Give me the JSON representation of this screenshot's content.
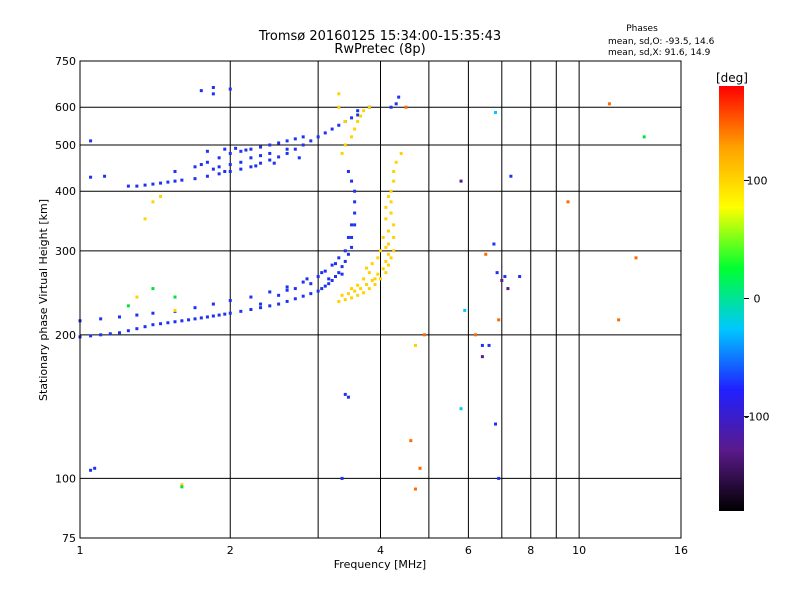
{
  "chart_data": {
    "type": "scatter",
    "title": "Tromsø 20160125 15:34:00-15:35:43",
    "subtitle": "RwPretec (8p)",
    "xlabel": "Frequency [MHz]",
    "ylabel": "Stationary phase Virtual Height [km]",
    "x_scale": "log",
    "y_scale": "log",
    "xlim": [
      1,
      16
    ],
    "ylim": [
      75,
      750
    ],
    "x_ticks": [
      1,
      2,
      4,
      6,
      8,
      10,
      16
    ],
    "y_ticks": [
      75,
      100,
      200,
      300,
      400,
      500,
      600,
      750
    ],
    "x_grid": [
      2,
      3,
      4,
      5,
      6,
      7,
      8,
      9,
      10
    ],
    "y_grid": [
      100,
      200,
      300,
      400,
      500,
      600
    ],
    "stats": {
      "title": "Phases",
      "line_o": "mean, sd,O: -93.5, 14.6",
      "line_x": "mean, sd,X:  91.6, 14.9"
    },
    "colorbar": {
      "label": "[deg]",
      "range": [
        -180,
        180
      ],
      "ticks": [
        100,
        0,
        -100
      ],
      "colors": [
        "#000000",
        "#5a1a8a",
        "#2020ff",
        "#00c8ff",
        "#00ff30",
        "#ffff00",
        "#ffa000",
        "#ff0000"
      ]
    },
    "series": [
      {
        "color": "#1e32f0",
        "points": [
          [
            1.0,
            198
          ],
          [
            1.05,
            199
          ],
          [
            1.1,
            200
          ],
          [
            1.15,
            201
          ],
          [
            1.2,
            202
          ],
          [
            1.25,
            204
          ],
          [
            1.3,
            206
          ],
          [
            1.35,
            208
          ],
          [
            1.4,
            210
          ],
          [
            1.45,
            211
          ],
          [
            1.5,
            212
          ],
          [
            1.55,
            213
          ],
          [
            1.6,
            214
          ],
          [
            1.65,
            215
          ],
          [
            1.7,
            216
          ],
          [
            1.75,
            217
          ],
          [
            1.8,
            218
          ],
          [
            1.85,
            219
          ],
          [
            1.9,
            220
          ],
          [
            1.95,
            221
          ],
          [
            2.0,
            222
          ],
          [
            2.1,
            224
          ],
          [
            2.2,
            226
          ],
          [
            2.3,
            228
          ],
          [
            2.4,
            230
          ],
          [
            2.5,
            232
          ],
          [
            2.6,
            235
          ],
          [
            2.7,
            238
          ],
          [
            2.8,
            241
          ],
          [
            2.9,
            244
          ],
          [
            3.0,
            247
          ],
          [
            3.05,
            250
          ],
          [
            3.1,
            253
          ],
          [
            3.15,
            256
          ],
          [
            3.2,
            260
          ],
          [
            3.25,
            265
          ],
          [
            3.3,
            270
          ],
          [
            3.35,
            278
          ],
          [
            3.4,
            285
          ],
          [
            3.45,
            295
          ],
          [
            3.5,
            305
          ],
          [
            3.5,
            320
          ],
          [
            3.55,
            340
          ],
          [
            3.55,
            360
          ],
          [
            3.55,
            380
          ],
          [
            3.55,
            400
          ],
          [
            3.5,
            420
          ],
          [
            3.45,
            440
          ],
          [
            1.0,
            214
          ],
          [
            1.1,
            216
          ],
          [
            1.2,
            218
          ],
          [
            1.3,
            220
          ],
          [
            1.4,
            222
          ],
          [
            1.55,
            224
          ],
          [
            1.7,
            228
          ],
          [
            1.85,
            232
          ],
          [
            2.0,
            236
          ],
          [
            2.2,
            240
          ],
          [
            2.4,
            246
          ],
          [
            2.6,
            252
          ],
          [
            2.8,
            258
          ],
          [
            3.0,
            265
          ],
          [
            3.1,
            272
          ],
          [
            3.2,
            280
          ],
          [
            3.3,
            290
          ],
          [
            3.4,
            300
          ],
          [
            3.45,
            320
          ],
          [
            3.5,
            340
          ],
          [
            2.3,
            232
          ],
          [
            2.5,
            242
          ],
          [
            2.7,
            250
          ],
          [
            2.9,
            256
          ],
          [
            3.15,
            262
          ],
          [
            3.35,
            268
          ],
          [
            2.6,
            248
          ],
          [
            2.85,
            262
          ],
          [
            3.05,
            270
          ],
          [
            3.25,
            282
          ],
          [
            1.05,
            428
          ],
          [
            1.12,
            430
          ],
          [
            1.25,
            410
          ],
          [
            1.3,
            410
          ],
          [
            1.35,
            412
          ],
          [
            1.4,
            414
          ],
          [
            1.45,
            416
          ],
          [
            1.5,
            418
          ],
          [
            1.55,
            420
          ],
          [
            1.6,
            422
          ],
          [
            1.7,
            425
          ],
          [
            1.8,
            430
          ],
          [
            1.9,
            435
          ],
          [
            2.0,
            440
          ],
          [
            2.1,
            445
          ],
          [
            2.2,
            450
          ],
          [
            2.3,
            458
          ],
          [
            2.4,
            465
          ],
          [
            2.5,
            472
          ],
          [
            2.6,
            480
          ],
          [
            2.7,
            490
          ],
          [
            2.8,
            500
          ],
          [
            2.9,
            510
          ],
          [
            3.0,
            520
          ],
          [
            3.1,
            530
          ],
          [
            3.2,
            540
          ],
          [
            3.3,
            550
          ],
          [
            3.4,
            560
          ],
          [
            3.5,
            570
          ],
          [
            3.6,
            578
          ],
          [
            1.55,
            440
          ],
          [
            1.7,
            450
          ],
          [
            1.8,
            460
          ],
          [
            1.9,
            470
          ],
          [
            2.0,
            480
          ],
          [
            2.1,
            485
          ],
          [
            2.2,
            490
          ],
          [
            2.3,
            495
          ],
          [
            2.4,
            500
          ],
          [
            2.5,
            505
          ],
          [
            2.6,
            510
          ],
          [
            2.7,
            515
          ],
          [
            2.8,
            520
          ],
          [
            1.9,
            450
          ],
          [
            2.0,
            455
          ],
          [
            2.1,
            460
          ],
          [
            2.2,
            470
          ],
          [
            2.3,
            475
          ],
          [
            2.4,
            480
          ],
          [
            2.6,
            490
          ],
          [
            1.8,
            485
          ],
          [
            1.95,
            490
          ],
          [
            2.05,
            492
          ],
          [
            2.15,
            488
          ],
          [
            1.75,
            455
          ],
          [
            1.85,
            445
          ],
          [
            1.95,
            440
          ],
          [
            2.25,
            452
          ],
          [
            2.45,
            458
          ],
          [
            2.75,
            470
          ],
          [
            1.05,
            510
          ],
          [
            1.75,
            650
          ],
          [
            1.85,
            640
          ],
          [
            1.85,
            660
          ],
          [
            2.0,
            655
          ],
          [
            4.2,
            600
          ],
          [
            4.35,
            630
          ],
          [
            4.3,
            610
          ],
          [
            3.6,
            590
          ],
          [
            3.8,
            600
          ],
          [
            1.05,
            104
          ],
          [
            1.07,
            105
          ],
          [
            3.35,
            100
          ],
          [
            3.4,
            150
          ],
          [
            3.45,
            148
          ],
          [
            6.75,
            310
          ],
          [
            6.85,
            270
          ],
          [
            6.9,
            100
          ],
          [
            6.6,
            190
          ],
          [
            7.1,
            265
          ],
          [
            6.8,
            130
          ],
          [
            7.6,
            265
          ],
          [
            6.4,
            190
          ],
          [
            7.3,
            430
          ]
        ]
      },
      {
        "color": "#ffd200",
        "points": [
          [
            3.3,
            235
          ],
          [
            3.4,
            237
          ],
          [
            3.5,
            239
          ],
          [
            3.6,
            242
          ],
          [
            3.7,
            245
          ],
          [
            3.8,
            250
          ],
          [
            3.9,
            255
          ],
          [
            4.0,
            262
          ],
          [
            4.1,
            270
          ],
          [
            4.15,
            280
          ],
          [
            4.2,
            290
          ],
          [
            4.25,
            300
          ],
          [
            4.25,
            320
          ],
          [
            4.25,
            340
          ],
          [
            4.2,
            360
          ],
          [
            4.2,
            380
          ],
          [
            4.2,
            400
          ],
          [
            4.25,
            420
          ],
          [
            4.25,
            440
          ],
          [
            4.3,
            460
          ],
          [
            3.35,
            242
          ],
          [
            3.45,
            244
          ],
          [
            3.55,
            247
          ],
          [
            3.65,
            250
          ],
          [
            3.75,
            255
          ],
          [
            3.85,
            260
          ],
          [
            3.95,
            268
          ],
          [
            4.05,
            275
          ],
          [
            4.1,
            285
          ],
          [
            4.15,
            295
          ],
          [
            4.15,
            310
          ],
          [
            4.15,
            330
          ],
          [
            4.1,
            350
          ],
          [
            4.1,
            370
          ],
          [
            4.15,
            390
          ],
          [
            3.9,
            262
          ],
          [
            3.8,
            270
          ],
          [
            3.7,
            262
          ],
          [
            3.6,
            254
          ],
          [
            3.5,
            250
          ],
          [
            4.0,
            300
          ],
          [
            3.95,
            290
          ],
          [
            4.05,
            320
          ],
          [
            4.1,
            305
          ],
          [
            3.85,
            282
          ],
          [
            3.75,
            276
          ],
          [
            3.35,
            480
          ],
          [
            3.4,
            500
          ],
          [
            3.5,
            520
          ],
          [
            3.55,
            540
          ],
          [
            3.6,
            560
          ],
          [
            3.65,
            575
          ],
          [
            3.7,
            590
          ],
          [
            3.8,
            600
          ],
          [
            3.4,
            560
          ],
          [
            3.3,
            600
          ],
          [
            3.3,
            640
          ],
          [
            1.35,
            350
          ],
          [
            1.4,
            380
          ],
          [
            1.45,
            390
          ],
          [
            1.3,
            240
          ],
          [
            1.55,
            225
          ],
          [
            1.6,
            97
          ],
          [
            4.4,
            480
          ],
          [
            4.7,
            190
          ]
        ]
      },
      {
        "color": "#00c8ff",
        "points": [
          [
            6.8,
            585
          ],
          [
            5.8,
            140
          ],
          [
            5.9,
            225
          ]
        ]
      },
      {
        "color": "#00e040",
        "points": [
          [
            1.25,
            230
          ],
          [
            1.4,
            250
          ],
          [
            1.55,
            240
          ],
          [
            1.6,
            96
          ],
          [
            13.5,
            520
          ]
        ]
      },
      {
        "color": "#ff6a00",
        "points": [
          [
            4.5,
            600
          ],
          [
            4.6,
            120
          ],
          [
            4.7,
            95
          ],
          [
            4.8,
            105
          ],
          [
            4.9,
            200
          ],
          [
            6.2,
            200
          ],
          [
            6.5,
            295
          ],
          [
            6.9,
            215
          ],
          [
            9.5,
            380
          ],
          [
            11.5,
            610
          ],
          [
            13.0,
            290
          ],
          [
            12.0,
            215
          ]
        ]
      },
      {
        "color": "#5a1a8a",
        "points": [
          [
            5.8,
            420
          ],
          [
            6.4,
            180
          ],
          [
            7.0,
            260
          ],
          [
            7.2,
            250
          ]
        ]
      }
    ]
  }
}
